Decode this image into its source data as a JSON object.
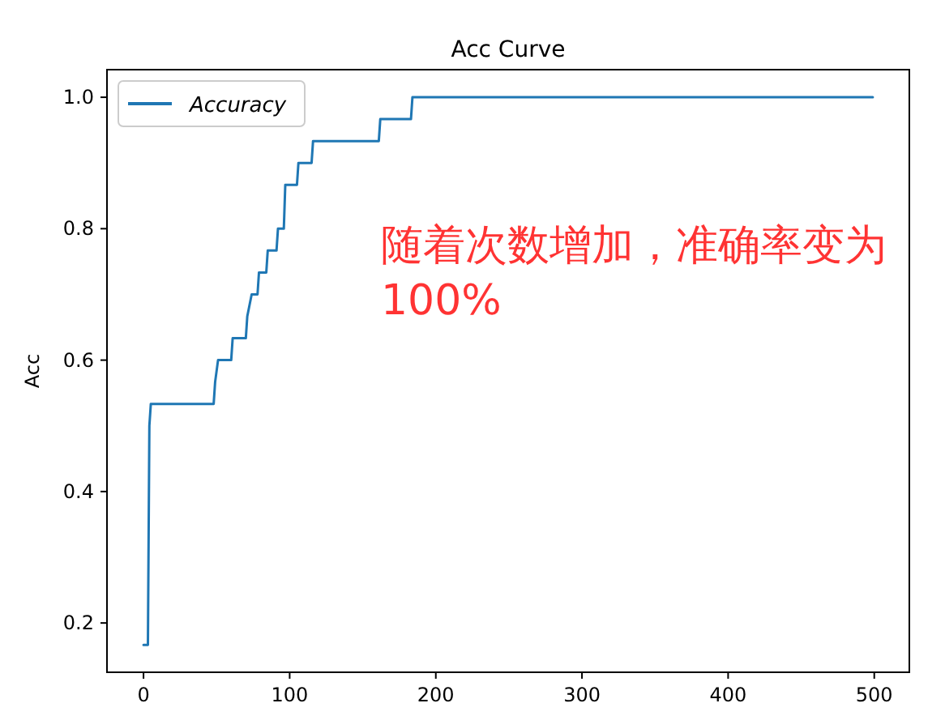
{
  "chart_data": {
    "type": "line",
    "title": "Acc Curve",
    "ylabel": "Acc",
    "annotations": [
      "随着次数增加，准确率变为100%"
    ],
    "x": [
      0,
      3,
      4,
      5,
      48,
      49,
      51,
      60,
      61,
      70,
      71,
      74,
      78,
      79,
      84,
      85,
      91,
      92,
      96,
      97,
      105,
      106,
      115,
      116,
      161,
      162,
      183,
      184,
      499
    ],
    "series": [
      {
        "name": "Accuracy",
        "color": "#1f77b4",
        "values": [
          0.1667,
          0.1667,
          0.5,
          0.5333,
          0.5333,
          0.5667,
          0.6,
          0.6,
          0.6333,
          0.6333,
          0.6667,
          0.7,
          0.7,
          0.7333,
          0.7333,
          0.7667,
          0.7667,
          0.8,
          0.8,
          0.8667,
          0.8667,
          0.9,
          0.9,
          0.9333,
          0.9333,
          0.9667,
          0.9667,
          1.0,
          1.0
        ]
      }
    ],
    "xlim": [
      -25,
      524
    ],
    "ylim": [
      0.125,
      1.042
    ],
    "xticks": [
      0,
      100,
      200,
      300,
      400,
      500
    ],
    "yticks": [
      0.2,
      0.4,
      0.6,
      0.8,
      {
        "value": 1,
        "label": "1.0"
      }
    ],
    "legend": "top left"
  }
}
